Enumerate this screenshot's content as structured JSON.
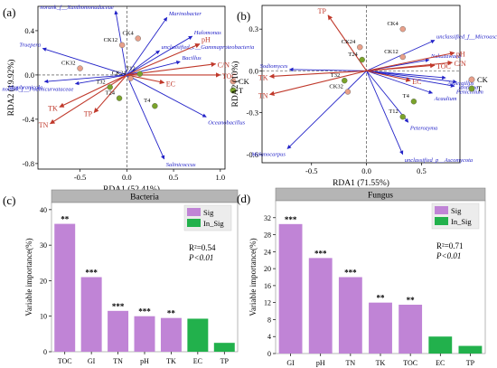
{
  "chart_data": [
    {
      "type": "scatter",
      "subtype": "rda-biplot",
      "panel_label": "(a)",
      "xlabel": "RDA1 (52.41%)",
      "ylabel": "RDA2 (19.92%)",
      "xlim": [
        -0.95,
        1.05
      ],
      "ylim": [
        -0.85,
        0.62
      ],
      "xticks": [
        -0.5,
        0.0,
        0.5,
        1.0
      ],
      "yticks": [
        -0.8,
        -0.4,
        0.0,
        0.4
      ],
      "xtick_labels": [
        "-0.5",
        "0.0",
        "0.5",
        "1.0"
      ],
      "ytick_labels": [
        "-0.8",
        "-0.4",
        "0.0",
        "0.4"
      ],
      "legend": [
        {
          "name": "CK",
          "color": "#e8a08a"
        },
        {
          "name": "T",
          "color": "#7aa32a"
        }
      ],
      "env_vectors": [
        {
          "label": "pH",
          "x": 0.78,
          "y": 0.28
        },
        {
          "label": "C/N",
          "x": 0.95,
          "y": 0.1
        },
        {
          "label": "TOC",
          "x": 1.0,
          "y": 0.0
        },
        {
          "label": "EC",
          "x": 0.4,
          "y": -0.07
        },
        {
          "label": "TK",
          "x": -0.72,
          "y": -0.29
        },
        {
          "label": "TN",
          "x": -0.82,
          "y": -0.44
        },
        {
          "label": "TP",
          "x": -0.35,
          "y": -0.34
        }
      ],
      "species_vectors": [
        {
          "label": "norank_f__Xanthomonadaceae",
          "x": -0.12,
          "y": 0.58
        },
        {
          "label": "Marinobacter",
          "x": 0.43,
          "y": 0.52
        },
        {
          "label": "Halomonas",
          "x": 0.7,
          "y": 0.35
        },
        {
          "label": "Bacillus",
          "x": 0.57,
          "y": 0.12
        },
        {
          "label": "unclassified_c__Gammaproteobacteria",
          "x": 0.35,
          "y": 0.22
        },
        {
          "label": "Truepera",
          "x": -0.9,
          "y": 0.24
        },
        {
          "label": "Membranicola",
          "x": -0.88,
          "y": -0.06
        },
        {
          "label": "norank_f__Fodinicurvataceae",
          "x": -0.55,
          "y": -0.08
        },
        {
          "label": "Oceanobacillus",
          "x": 0.85,
          "y": -0.38
        },
        {
          "label": "Salinicoccus",
          "x": 0.4,
          "y": -0.76
        }
      ],
      "samples": [
        {
          "label": "CK12",
          "group": "CK",
          "x": -0.05,
          "y": 0.27
        },
        {
          "label": "CK4",
          "group": "CK",
          "x": 0.12,
          "y": 0.33
        },
        {
          "label": "CK32",
          "group": "CK",
          "x": -0.5,
          "y": 0.06
        },
        {
          "label": "CK24",
          "group": "CK",
          "x": 0.04,
          "y": -0.03
        },
        {
          "label": "T32",
          "group": "T",
          "x": -0.18,
          "y": -0.11
        },
        {
          "label": "T24",
          "group": "T",
          "x": -0.08,
          "y": -0.21
        },
        {
          "label": "T4",
          "group": "T",
          "x": 0.3,
          "y": -0.28
        },
        {
          "label": "T12",
          "group": "T",
          "x": 0.14,
          "y": 0.01
        }
      ]
    },
    {
      "type": "scatter",
      "subtype": "rda-biplot",
      "panel_label": "(b)",
      "xlabel": "RDA1 (71.55%)",
      "ylabel": "RDA2 (10%)",
      "xlim": [
        -0.95,
        0.85
      ],
      "ylim": [
        -0.66,
        0.47
      ],
      "xticks": [
        -0.5,
        0.0,
        0.5
      ],
      "yticks": [
        -0.6,
        -0.3,
        0.0,
        0.3
      ],
      "xtick_labels": [
        "-0.5",
        "0.0",
        "0.5"
      ],
      "ytick_labels": [
        "-0.6",
        "-0.3",
        "0.0",
        "0.3"
      ],
      "legend": [
        {
          "name": "CK",
          "color": "#e8a08a"
        },
        {
          "name": "T",
          "color": "#7aa32a"
        }
      ],
      "env_vectors": [
        {
          "label": "TP",
          "x": -0.35,
          "y": 0.4
        },
        {
          "label": "pH",
          "x": 0.8,
          "y": 0.13
        },
        {
          "label": "C/N",
          "x": 0.78,
          "y": 0.06
        },
        {
          "label": "TOC",
          "x": 0.62,
          "y": 0.04
        },
        {
          "label": "EC",
          "x": 0.4,
          "y": -0.07
        },
        {
          "label": "TK",
          "x": -0.88,
          "y": -0.04
        },
        {
          "label": "TN",
          "x": -0.88,
          "y": -0.17
        }
      ],
      "species_vectors": [
        {
          "label": "unclassified_f__Microascaceae",
          "x": 0.62,
          "y": 0.22
        },
        {
          "label": "Nakazawaea",
          "x": 0.57,
          "y": 0.08
        },
        {
          "label": "Aspergillus",
          "x": 0.72,
          "y": -0.05
        },
        {
          "label": "Ianthina",
          "x": 0.82,
          "y": -0.08
        },
        {
          "label": "Penicillium",
          "x": 0.8,
          "y": -0.11
        },
        {
          "label": "Acaulium",
          "x": 0.6,
          "y": -0.16
        },
        {
          "label": "Sodiomyces",
          "x": -0.7,
          "y": 0.01
        },
        {
          "label": "Peterozyma",
          "x": 0.38,
          "y": -0.37
        },
        {
          "label": "Melanocarpus",
          "x": -0.72,
          "y": -0.56
        },
        {
          "label": "unclassified_p__Ascomycota",
          "x": 0.33,
          "y": -0.6
        }
      ],
      "samples": [
        {
          "label": "CK4",
          "group": "CK",
          "x": 0.33,
          "y": 0.3
        },
        {
          "label": "CK24",
          "group": "CK",
          "x": -0.06,
          "y": 0.17
        },
        {
          "label": "CK12",
          "group": "CK",
          "x": 0.33,
          "y": 0.1
        },
        {
          "label": "T24",
          "group": "T",
          "x": -0.04,
          "y": 0.08
        },
        {
          "label": "T32",
          "group": "T",
          "x": -0.2,
          "y": -0.07
        },
        {
          "label": "CK32",
          "group": "CK",
          "x": -0.17,
          "y": -0.15
        },
        {
          "label": "T4",
          "group": "T",
          "x": 0.43,
          "y": -0.22
        },
        {
          "label": "T12",
          "group": "T",
          "x": 0.33,
          "y": -0.33
        }
      ]
    },
    {
      "type": "bar",
      "panel_label": "(c)",
      "title": "Bacteria",
      "ylabel": "Variable importance(%)",
      "ylim": [
        0,
        42
      ],
      "yticks": [
        0,
        10,
        20,
        30,
        40
      ],
      "categories": [
        "TOC",
        "GI",
        "TN",
        "pH",
        "TK",
        "EC",
        "TP"
      ],
      "values": [
        36,
        21,
        11.5,
        10,
        9.5,
        9.3,
        2.5
      ],
      "groups": [
        "Sig",
        "Sig",
        "Sig",
        "Sig",
        "Sig",
        "In_Sig",
        "In_Sig"
      ],
      "significance": [
        "**",
        "***",
        "***",
        "***",
        "**",
        "",
        ""
      ],
      "legend": [
        {
          "name": "Sig",
          "color": "#c084d6"
        },
        {
          "name": "In_Sig",
          "color": "#22b14c"
        }
      ],
      "annotation": {
        "r2": "R²=0.54",
        "p": "P<0.01"
      }
    },
    {
      "type": "bar",
      "panel_label": "(d)",
      "title": "Fungus",
      "ylabel": "Variable importance(%)",
      "ylim": [
        0,
        36
      ],
      "yticks": [
        0,
        4,
        8,
        12,
        16,
        20,
        24,
        28,
        32
      ],
      "categories": [
        "GI",
        "pH",
        "TN",
        "TK",
        "TOC",
        "EC",
        "TP"
      ],
      "values": [
        30.5,
        22.5,
        18,
        12,
        11.5,
        4,
        1.8
      ],
      "groups": [
        "Sig",
        "Sig",
        "Sig",
        "Sig",
        "Sig",
        "In_Sig",
        "In_Sig"
      ],
      "significance": [
        "***",
        "***",
        "***",
        "**",
        "**",
        "",
        ""
      ],
      "legend": [
        {
          "name": "Sig",
          "color": "#c084d6"
        },
        {
          "name": "In_Sig",
          "color": "#22b14c"
        }
      ],
      "annotation": {
        "r2": "R²=0.71",
        "p": "P<0.01"
      }
    }
  ]
}
